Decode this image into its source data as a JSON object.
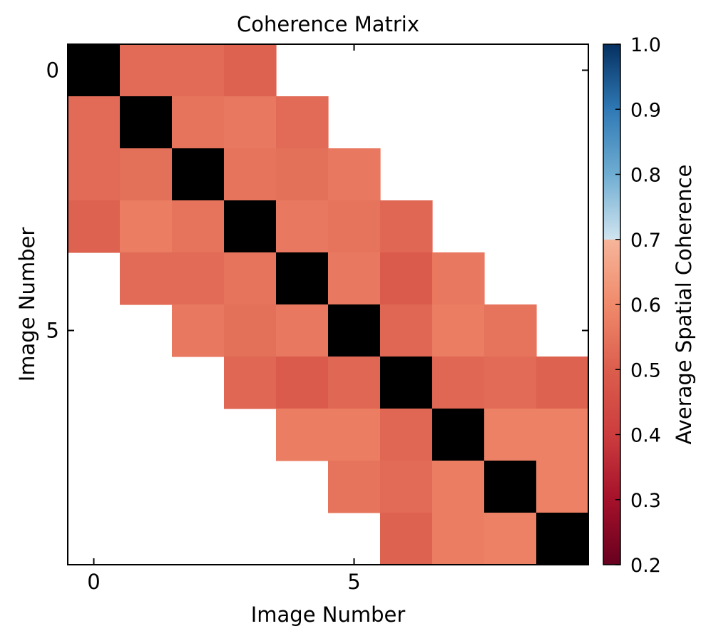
{
  "chart_data": {
    "type": "heatmap",
    "title": "Coherence Matrix",
    "xlabel": "Image Number",
    "ylabel": "Image Number",
    "x_ticks": [
      0,
      5
    ],
    "y_ticks": [
      0,
      5
    ],
    "diagonal_color": "#000000",
    "empty_color": "#ffffff",
    "colorbar": {
      "label": "Average Spatial Coherence",
      "range": [
        0.2,
        1.0
      ],
      "ticks": [
        "0.2",
        "0.3",
        "0.4",
        "0.5",
        "0.6",
        "0.7",
        "0.8",
        "0.9",
        "1.0"
      ],
      "colormap": "RdBu",
      "stops": [
        {
          "v": 0.2,
          "c": "#67001f"
        },
        {
          "v": 0.3,
          "c": "#a5112a"
        },
        {
          "v": 0.4,
          "c": "#cc3d3e"
        },
        {
          "v": 0.5,
          "c": "#db5e4d"
        },
        {
          "v": 0.6,
          "c": "#f08a6b"
        },
        {
          "v": 0.7,
          "c": "#f6b59a"
        },
        {
          "v": 0.7,
          "c": "#d0e4ef"
        },
        {
          "v": 0.8,
          "c": "#6fadd2"
        },
        {
          "v": 0.9,
          "c": "#2f79b5"
        },
        {
          "v": 1.0,
          "c": "#053061"
        }
      ]
    },
    "size": 10,
    "matrix": [
      [
        null,
        0.53,
        0.53,
        0.51,
        null,
        null,
        null,
        null,
        null,
        null
      ],
      [
        0.53,
        null,
        0.55,
        0.56,
        0.53,
        null,
        null,
        null,
        null,
        null
      ],
      [
        0.53,
        0.54,
        null,
        0.55,
        0.54,
        0.56,
        null,
        null,
        null,
        null
      ],
      [
        0.51,
        0.57,
        0.55,
        null,
        0.56,
        0.55,
        0.52,
        null,
        null,
        null
      ],
      [
        null,
        0.53,
        0.53,
        0.55,
        null,
        0.56,
        0.49,
        0.56,
        null,
        null
      ],
      [
        null,
        null,
        0.56,
        0.54,
        0.56,
        null,
        0.52,
        0.57,
        0.55,
        null
      ],
      [
        null,
        null,
        null,
        0.52,
        0.49,
        0.52,
        null,
        0.52,
        0.53,
        0.51
      ],
      [
        null,
        null,
        null,
        null,
        0.57,
        0.57,
        0.52,
        null,
        0.58,
        0.58
      ],
      [
        null,
        null,
        null,
        null,
        null,
        0.55,
        0.53,
        0.57,
        null,
        0.58
      ],
      [
        null,
        null,
        null,
        null,
        null,
        null,
        0.51,
        0.57,
        0.58,
        null
      ]
    ]
  }
}
